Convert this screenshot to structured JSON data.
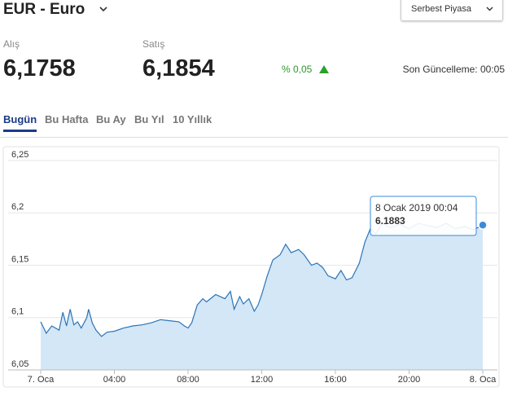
{
  "header": {
    "title": "EUR - Euro",
    "market": "Serbest Piyasa"
  },
  "quotes": {
    "buy_label": "Alış",
    "buy": "6,1758",
    "sell_label": "Satış",
    "sell": "6,1854",
    "change": "% 0,05",
    "updated": "Son Güncelleme: 00:05"
  },
  "tabs": [
    "Bugün",
    "Bu Hafta",
    "Bu Ay",
    "Bu Yıl",
    "10 Yıllık"
  ],
  "chart_data": {
    "type": "area",
    "color": "#2a74b8",
    "fill": "#d4e7f6",
    "grid": true,
    "x": [
      0,
      0.3,
      0.6,
      1,
      1.2,
      1.4,
      1.6,
      1.8,
      2,
      2.2,
      2.5,
      2.6,
      2.8,
      3,
      3.3,
      3.6,
      4,
      4.5,
      5,
      5.5,
      6,
      6.5,
      7,
      7.5,
      7.8,
      8,
      8.2,
      8.5,
      8.8,
      9,
      9.5,
      10,
      10.3,
      10.5,
      10.8,
      11,
      11.3,
      11.6,
      11.8,
      12,
      12.3,
      12.6,
      13,
      13.3,
      13.6,
      14,
      14.3,
      14.7,
      15,
      15.3,
      15.6,
      16,
      16.3,
      16.6,
      16.9,
      17.3,
      17.6,
      17.9,
      18.2,
      18.5,
      19,
      19.5,
      20,
      20.5,
      21,
      21.5,
      22,
      22.5,
      23,
      23.5,
      24
    ],
    "values": [
      6.096,
      6.085,
      6.092,
      6.088,
      6.105,
      6.092,
      6.108,
      6.093,
      6.096,
      6.09,
      6.1,
      6.108,
      6.095,
      6.088,
      6.082,
      6.086,
      6.087,
      6.09,
      6.092,
      6.093,
      6.095,
      6.098,
      6.097,
      6.096,
      6.092,
      6.09,
      6.095,
      6.112,
      6.118,
      6.115,
      6.122,
      6.118,
      6.125,
      6.108,
      6.12,
      6.113,
      6.118,
      6.106,
      6.112,
      6.122,
      6.14,
      6.155,
      6.16,
      6.17,
      6.162,
      6.165,
      6.16,
      6.15,
      6.152,
      6.148,
      6.14,
      6.137,
      6.145,
      6.136,
      6.138,
      6.152,
      6.172,
      6.185,
      6.18,
      6.19,
      6.186,
      6.189,
      6.185,
      6.19,
      6.188,
      6.186,
      6.19,
      6.185,
      6.187,
      6.184,
      6.1883
    ],
    "xlim": [
      0,
      24
    ],
    "xticks": [
      {
        "value": 0,
        "label": "7. Oca"
      },
      {
        "value": 4,
        "label": "04:00"
      },
      {
        "value": 8,
        "label": "08:00"
      },
      {
        "value": 12,
        "label": "12:00"
      },
      {
        "value": 16,
        "label": "16:00"
      },
      {
        "value": 20,
        "label": "20:00"
      },
      {
        "value": 24,
        "label": "8. Oca"
      }
    ],
    "ylim": [
      6.05,
      6.25
    ],
    "yticks": [
      {
        "value": 6.25,
        "label": "6,25"
      },
      {
        "value": 6.2,
        "label": "6,2"
      },
      {
        "value": 6.15,
        "label": "6,15"
      },
      {
        "value": 6.1,
        "label": "6,1"
      },
      {
        "value": 6.05,
        "label": "6,05"
      }
    ],
    "tooltip": {
      "label": "8 Ocak 2019 00:04",
      "value": 6.1883
    }
  }
}
